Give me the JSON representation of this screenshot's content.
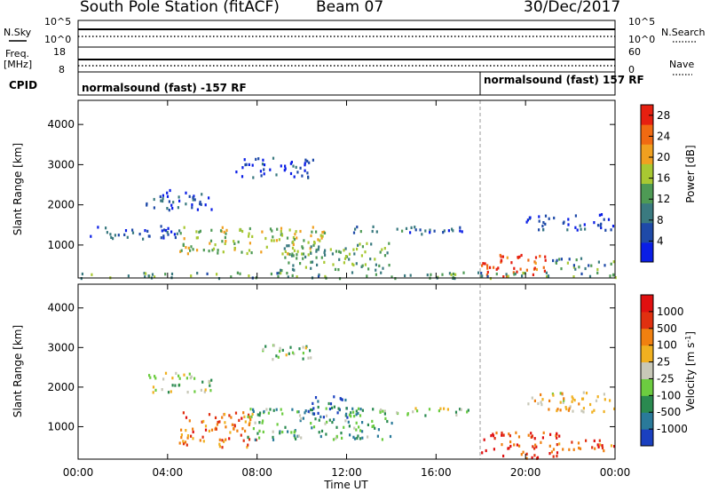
{
  "header": {
    "station": "South Pole Station (fitACF)",
    "beam": "Beam 07",
    "date": "30/Dec/2017"
  },
  "top_panels": {
    "nsky": {
      "label": "N.Sky",
      "ticks": [
        "10^5",
        "10^0"
      ]
    },
    "nsearch": {
      "label": "N.Search",
      "ticks": [
        "10^5",
        "10^0"
      ]
    },
    "freq": {
      "label_line1": "Freq.",
      "label_line2": "[MHz]",
      "ticks": [
        "18",
        "8"
      ]
    },
    "nave": {
      "label": "Nave",
      "ticks": [
        "60",
        "0"
      ]
    },
    "cpid": {
      "label": "CPID",
      "segments": [
        {
          "start_hour": 0,
          "end_hour": 18,
          "text": "normalsound (fast) -157 RF"
        },
        {
          "start_hour": 18,
          "end_hour": 24,
          "text": "normalsound (fast) 157 RF"
        }
      ]
    }
  },
  "chart_data": [
    {
      "type": "heatmap",
      "title": "",
      "xlabel": "Time UT",
      "ylabel": "Slant Range [km]",
      "x_ticks": [
        "00:00",
        "04:00",
        "08:00",
        "12:00",
        "16:00",
        "20:00",
        "00:00"
      ],
      "xlim_hours": [
        0,
        24
      ],
      "y_ticks": [
        "1000",
        "2000",
        "3000",
        "4000"
      ],
      "ylim": [
        180,
        4600
      ],
      "colorbar": {
        "label": "Power [dB]",
        "ticks": [
          "4",
          "8",
          "12",
          "16",
          "20",
          "24",
          "28"
        ],
        "range": [
          0,
          30
        ],
        "colors": [
          "#0a1ee6",
          "#1f4aa8",
          "#3a7a80",
          "#4e9a55",
          "#a8c832",
          "#f0a020",
          "#f06a12",
          "#e62010"
        ]
      },
      "regions": [
        {
          "t0": 0.5,
          "t1": 4.5,
          "r0": 1150,
          "r1": 1500,
          "level": 0.2
        },
        {
          "t0": 3.0,
          "t1": 6.0,
          "r0": 1900,
          "r1": 2400,
          "level": 0.15
        },
        {
          "t0": 4.5,
          "t1": 11.0,
          "r0": 800,
          "r1": 1500,
          "level": 0.55
        },
        {
          "t0": 7.0,
          "t1": 10.5,
          "r0": 2700,
          "r1": 3200,
          "level": 0.1
        },
        {
          "t0": 9.0,
          "t1": 14.0,
          "r0": 400,
          "r1": 1100,
          "level": 0.45
        },
        {
          "t0": 12.0,
          "t1": 17.5,
          "r0": 1300,
          "r1": 1500,
          "level": 0.25
        },
        {
          "t0": 18.0,
          "t1": 21.0,
          "r0": 220,
          "r1": 800,
          "level": 0.9
        },
        {
          "t0": 20.0,
          "t1": 24.0,
          "r0": 1400,
          "r1": 1800,
          "level": 0.15
        },
        {
          "t0": 21.0,
          "t1": 24.0,
          "r0": 400,
          "r1": 700,
          "level": 0.35
        },
        {
          "t0": 0.0,
          "t1": 24.0,
          "r0": 200,
          "r1": 350,
          "level": 0.4
        }
      ]
    },
    {
      "type": "heatmap",
      "title": "",
      "xlabel": "Time UT",
      "ylabel": "Slant Range [km]",
      "x_ticks": [
        "00:00",
        "04:00",
        "08:00",
        "12:00",
        "16:00",
        "20:00",
        "00:00"
      ],
      "xlim_hours": [
        0,
        24
      ],
      "y_ticks": [
        "1000",
        "2000",
        "3000",
        "4000"
      ],
      "ylim": [
        180,
        4600
      ],
      "colorbar": {
        "label": "Velocity [m s^-1]",
        "ticks": [
          "1000",
          "500",
          "100",
          "25",
          "-25",
          "-100",
          "-500",
          "-1000"
        ],
        "range": [
          -1200,
          1200
        ],
        "colors": [
          "#1a40c0",
          "#2a7a9a",
          "#2a8a50",
          "#6ccc40",
          "#c8c8b8",
          "#f0b020",
          "#f08010",
          "#e03010",
          "#e01010"
        ]
      },
      "regions": [
        {
          "t0": 3.0,
          "t1": 6.0,
          "r0": 1900,
          "r1": 2400,
          "level": 0.45
        },
        {
          "t0": 4.5,
          "t1": 8.0,
          "r0": 500,
          "r1": 1400,
          "level": 0.75
        },
        {
          "t0": 7.5,
          "t1": 14.0,
          "r0": 700,
          "r1": 1500,
          "level": 0.3
        },
        {
          "t0": 10.0,
          "t1": 12.0,
          "r0": 1200,
          "r1": 1800,
          "level": 0.1
        },
        {
          "t0": 8.0,
          "t1": 10.5,
          "r0": 2700,
          "r1": 3100,
          "level": 0.45
        },
        {
          "t0": 13.0,
          "t1": 17.5,
          "r0": 1300,
          "r1": 1500,
          "level": 0.45
        },
        {
          "t0": 18.0,
          "t1": 21.5,
          "r0": 220,
          "r1": 900,
          "level": 0.85
        },
        {
          "t0": 20.0,
          "t1": 24.0,
          "r0": 1400,
          "r1": 1900,
          "level": 0.6
        },
        {
          "t0": 21.0,
          "t1": 24.0,
          "r0": 400,
          "r1": 700,
          "level": 0.8
        }
      ]
    }
  ]
}
